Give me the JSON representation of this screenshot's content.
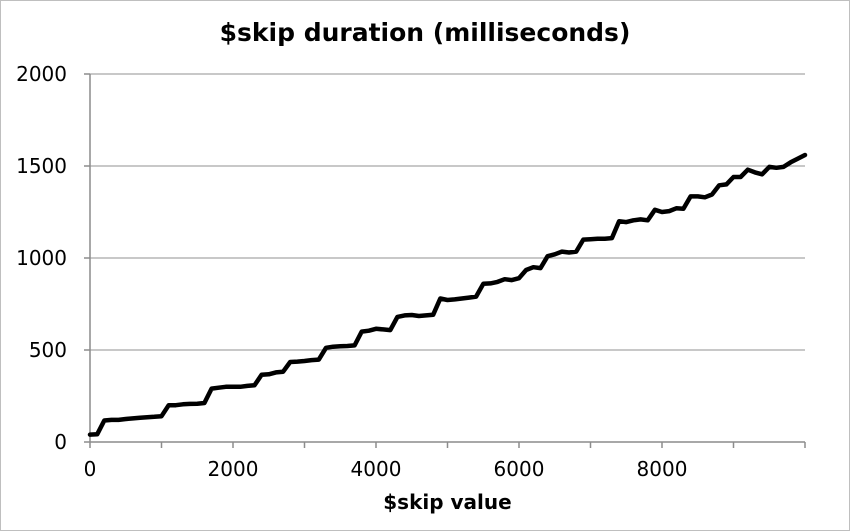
{
  "chart_data": {
    "type": "line",
    "title": "$skip duration (milliseconds)",
    "xlabel": "$skip value",
    "ylabel": "",
    "xlim": [
      0,
      10000
    ],
    "ylim": [
      0,
      2000
    ],
    "x_ticks": [
      0,
      2000,
      4000,
      6000,
      8000
    ],
    "y_ticks": [
      0,
      500,
      1000,
      1500,
      2000
    ],
    "grid": "horizontal",
    "legend": "none",
    "line_color": "#000000",
    "series": [
      {
        "x": [
          0,
          100,
          200,
          300,
          400,
          500,
          600,
          700,
          800,
          900,
          1000,
          1100,
          1200,
          1300,
          1400,
          1500,
          1600,
          1700,
          1800,
          1900,
          2000,
          2100,
          2200,
          2300,
          2400,
          2500,
          2600,
          2700,
          2800,
          2900,
          3000,
          3100,
          3200,
          3300,
          3400,
          3500,
          3600,
          3700,
          3800,
          3900,
          4000,
          4100,
          4200,
          4300,
          4400,
          4500,
          4600,
          4700,
          4800,
          4900,
          5000,
          5100,
          5200,
          5300,
          5400,
          5500,
          5600,
          5700,
          5800,
          5900,
          6000,
          6100,
          6200,
          6300,
          6400,
          6500,
          6600,
          6700,
          6800,
          6900,
          7000,
          7100,
          7200,
          7300,
          7400,
          7500,
          7600,
          7700,
          7800,
          7900,
          8000,
          8100,
          8200,
          8300,
          8400,
          8500,
          8600,
          8700,
          8800,
          8900,
          9000,
          9100,
          9200,
          9300,
          9400,
          9500,
          9600,
          9700,
          9800,
          9900,
          10000
        ],
        "values": [
          40,
          42,
          117,
          120,
          120,
          125,
          128,
          132,
          135,
          137,
          140,
          200,
          200,
          205,
          207,
          208,
          212,
          290,
          295,
          300,
          300,
          300,
          305,
          308,
          365,
          368,
          378,
          382,
          435,
          437,
          440,
          445,
          448,
          512,
          518,
          520,
          522,
          525,
          600,
          605,
          615,
          612,
          608,
          680,
          688,
          690,
          685,
          688,
          692,
          780,
          772,
          775,
          780,
          785,
          790,
          860,
          862,
          870,
          885,
          880,
          890,
          935,
          950,
          945,
          1010,
          1020,
          1035,
          1030,
          1035,
          1100,
          1102,
          1105,
          1105,
          1108,
          1200,
          1195,
          1205,
          1210,
          1205,
          1262,
          1250,
          1255,
          1270,
          1268,
          1335,
          1335,
          1330,
          1345,
          1395,
          1400,
          1440,
          1440,
          1480,
          1465,
          1455,
          1495,
          1490,
          1495,
          1520,
          1540,
          1560
        ]
      }
    ]
  }
}
